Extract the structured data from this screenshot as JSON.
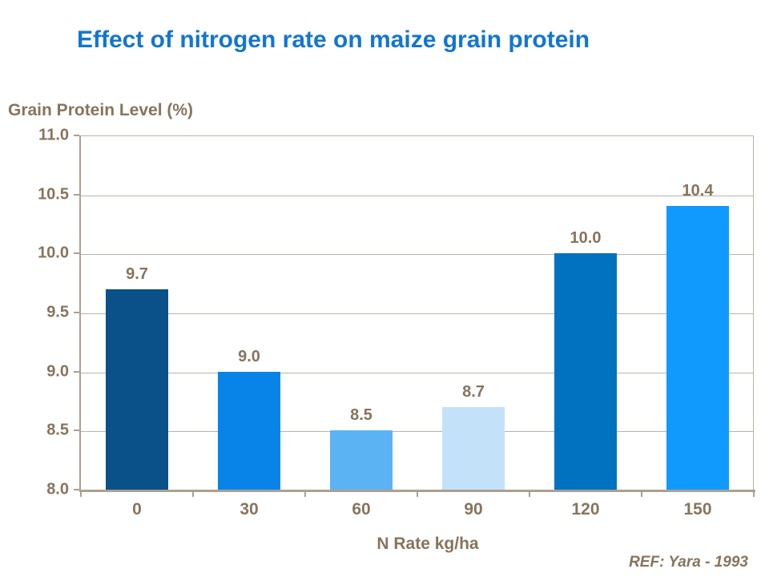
{
  "title": "Effect of nitrogen rate on maize grain protein",
  "footer": {
    "ref_label": "REF: Yara - 1993"
  },
  "chart_data": {
    "type": "bar",
    "title": "Effect of nitrogen rate on maize grain protein",
    "xlabel": "N Rate kg/ha",
    "ylabel": "Grain Protein Level (%)",
    "categories": [
      "0",
      "30",
      "60",
      "90",
      "120",
      "150"
    ],
    "values": [
      9.7,
      9.0,
      8.5,
      8.7,
      10.0,
      10.4
    ],
    "data_labels": [
      "9.7",
      "9.0",
      "8.5",
      "8.7",
      "10.0",
      "10.4"
    ],
    "bar_colors": [
      "#0A5189",
      "#0884E8",
      "#5BB3F4",
      "#C3E2FA",
      "#0072C0",
      "#119AFD"
    ],
    "ylim": [
      8.0,
      11.0
    ],
    "ytick_labels": [
      "11.0",
      "10.5",
      "10.0",
      "9.5",
      "9.0",
      "8.5",
      "8.0"
    ],
    "grid": true,
    "legend": "none",
    "colors": {
      "title_text": "#1176D2",
      "axis_text": "#87745C",
      "axis_line": "#ABA092",
      "gridline": "#BBB3A7"
    }
  }
}
